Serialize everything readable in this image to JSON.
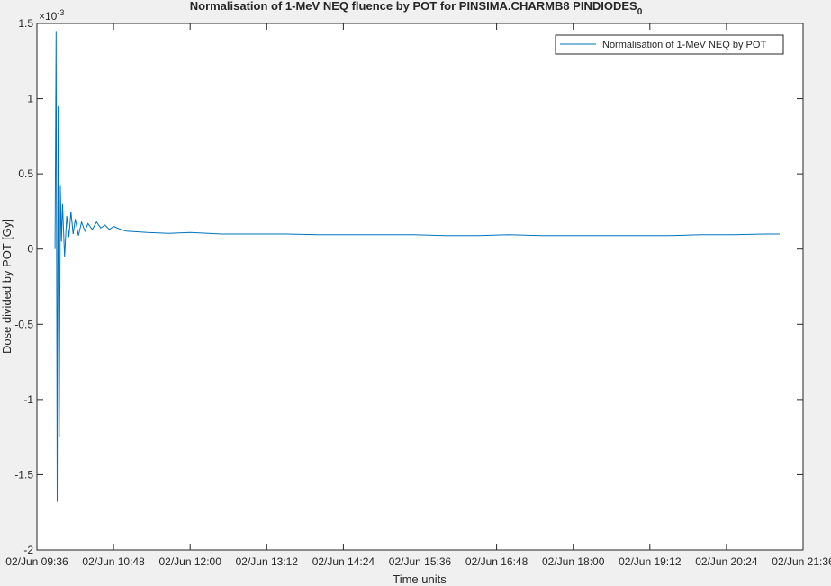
{
  "chart_data": {
    "type": "line",
    "title": "Normalisation of 1-MeV NEQ fluence by POT for PINSIMA.CHARMB8 PINDIODES",
    "title_subscript": "0",
    "xlabel": "Time units",
    "ylabel": "Dose divided by POT [Gy]",
    "y_exponent": "×10",
    "y_exponent_power": "-3",
    "xlim": [
      "02/Jun 09:36",
      "02/Jun 21:36"
    ],
    "ylim": [
      -2.0,
      1.5
    ],
    "x_ticks": [
      "02/Jun 09:36",
      "02/Jun 10:48",
      "02/Jun 12:00",
      "02/Jun 13:12",
      "02/Jun 14:24",
      "02/Jun 15:36",
      "02/Jun 16:48",
      "02/Jun 18:00",
      "02/Jun 19:12",
      "02/Jun 20:24",
      "02/Jun 21:36"
    ],
    "y_ticks": [
      "-2",
      "-1.5",
      "-1",
      "-0.5",
      "0",
      "0.5",
      "1",
      "1.5"
    ],
    "y_tick_values": [
      -2.0,
      -1.5,
      -1.0,
      -0.5,
      0.0,
      0.5,
      1.0,
      1.5
    ],
    "grid": false,
    "legend_position": "top-right",
    "series": [
      {
        "name": "Normalisation of 1-MeV NEQ by POT",
        "color": "#0072bd",
        "x": [
          "02/Jun 09:53",
          "02/Jun 09:54",
          "02/Jun 09:55",
          "02/Jun 09:56",
          "02/Jun 09:57",
          "02/Jun 09:58",
          "02/Jun 09:59",
          "02/Jun 10:00",
          "02/Jun 10:02",
          "02/Jun 10:04",
          "02/Jun 10:06",
          "02/Jun 10:08",
          "02/Jun 10:10",
          "02/Jun 10:12",
          "02/Jun 10:15",
          "02/Jun 10:18",
          "02/Jun 10:21",
          "02/Jun 10:24",
          "02/Jun 10:28",
          "02/Jun 10:32",
          "02/Jun 10:36",
          "02/Jun 10:40",
          "02/Jun 10:44",
          "02/Jun 10:48",
          "02/Jun 10:55",
          "02/Jun 11:00",
          "02/Jun 11:10",
          "02/Jun 11:20",
          "02/Jun 11:40",
          "02/Jun 12:00",
          "02/Jun 12:30",
          "02/Jun 13:00",
          "02/Jun 13:30",
          "02/Jun 14:00",
          "02/Jun 14:30",
          "02/Jun 15:00",
          "02/Jun 15:30",
          "02/Jun 16:00",
          "02/Jun 16:30",
          "02/Jun 17:00",
          "02/Jun 17:30",
          "02/Jun 18:00",
          "02/Jun 18:30",
          "02/Jun 19:00",
          "02/Jun 19:30",
          "02/Jun 20:00",
          "02/Jun 20:30",
          "02/Jun 21:00",
          "02/Jun 21:14"
        ],
        "y": [
          0.0,
          1.45,
          -1.68,
          0.95,
          -1.25,
          0.42,
          0.05,
          0.3,
          -0.05,
          0.22,
          0.08,
          0.25,
          0.1,
          0.2,
          0.09,
          0.18,
          0.12,
          0.17,
          0.13,
          0.18,
          0.14,
          0.16,
          0.13,
          0.15,
          0.13,
          0.12,
          0.115,
          0.11,
          0.105,
          0.11,
          0.1,
          0.1,
          0.1,
          0.095,
          0.095,
          0.095,
          0.095,
          0.09,
          0.09,
          0.095,
          0.09,
          0.09,
          0.09,
          0.09,
          0.09,
          0.095,
          0.095,
          0.1,
          0.1
        ]
      }
    ]
  }
}
